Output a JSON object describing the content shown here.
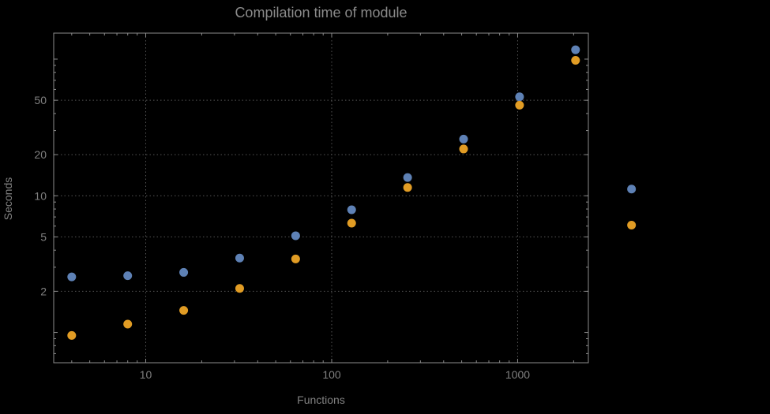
{
  "chart_data": {
    "type": "scatter",
    "title": "Compilation time of module",
    "xlabel": "Functions",
    "ylabel": "Seconds",
    "x_scale": "log",
    "y_scale": "log",
    "grid": true,
    "x_range": [
      3.2,
      2400
    ],
    "y_range": [
      0.6,
      155
    ],
    "x_ticks": [
      10,
      100,
      1000
    ],
    "y_ticks": [
      2,
      5,
      10,
      20,
      50
    ],
    "x": [
      4,
      8,
      16,
      32,
      64,
      128,
      256,
      512,
      1024,
      2048,
      4096
    ],
    "series": [
      {
        "name": "blue-series",
        "color": "#5e81b5",
        "values": [
          2.55,
          2.6,
          2.75,
          3.5,
          5.1,
          7.9,
          13.6,
          26,
          53,
          117,
          11.2
        ]
      },
      {
        "name": "orange-series",
        "color": "#e19c24",
        "values": [
          0.95,
          1.15,
          1.45,
          2.1,
          3.45,
          6.3,
          11.5,
          22,
          46,
          98,
          6.1
        ]
      }
    ]
  },
  "colors": {
    "background": "#000000",
    "frame": "#8c8c8c",
    "grid": "#555555",
    "text": "#808080",
    "title_text": "#8a8a8a"
  }
}
